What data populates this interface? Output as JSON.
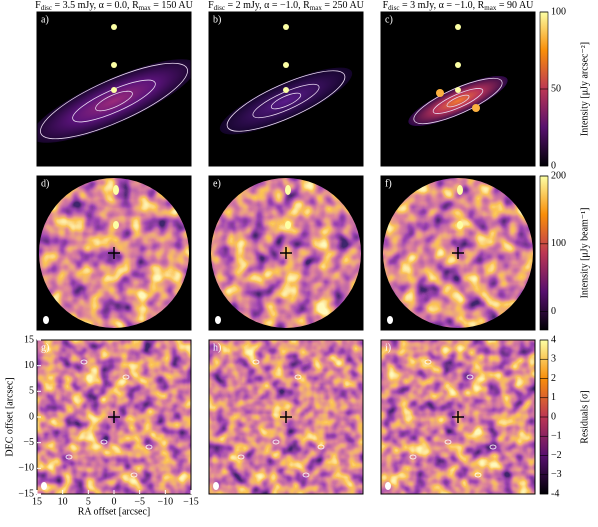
{
  "columns": [
    {
      "title": [
        "F",
        "disc",
        " = 3.5 mJy, α = 0.0, ",
        "R",
        "max",
        " = 150 AU"
      ]
    },
    {
      "title": [
        "F",
        "disc",
        " = 2 mJy, α = −1.0, ",
        "R",
        "max",
        " = 250 AU"
      ]
    },
    {
      "title": [
        "F",
        "disc",
        " = 3 mJy, α = −1.0, ",
        "R",
        "max",
        " = 90 AU"
      ]
    }
  ],
  "panels": [
    [
      "a)",
      "b)",
      "c)"
    ],
    [
      "d)",
      "e)",
      "f)"
    ],
    [
      "g)",
      "h)",
      "i)"
    ]
  ],
  "colorbars": [
    {
      "label": "Intensity [μJy arcsec⁻²]",
      "lim": [
        0,
        100
      ],
      "ticks": [
        0,
        50,
        100
      ]
    },
    {
      "label": "Intensity [μJy beam⁻¹]",
      "lim": [
        -27,
        200
      ],
      "ticks": [
        0,
        100,
        200
      ]
    },
    {
      "label": "Residuals [σ]",
      "lim": [
        -4,
        4
      ],
      "ticks": [
        {
          "value": -4,
          "label": "-4"
        },
        {
          "value": -3,
          "label": "−3"
        },
        {
          "value": -2,
          "label": "−2"
        },
        {
          "value": -1,
          "label": "−1"
        },
        0,
        1,
        2,
        3,
        4
      ]
    }
  ],
  "axes": {
    "xlabel": "RA offset [arcsec]",
    "ylabel": "DEC offset [arcsec]",
    "xlim": [
      15,
      -15
    ],
    "ylim": [
      -15,
      15
    ],
    "xticks": [
      15,
      10,
      5,
      0,
      {
        "value": -5,
        "label": "−5"
      },
      {
        "value": -10,
        "label": "−10"
      },
      {
        "value": -15,
        "label": "−15"
      }
    ],
    "yticks": [
      {
        "value": -15,
        "label": "−15"
      },
      {
        "value": -10,
        "label": "−10"
      },
      {
        "value": -5,
        "label": "−5"
      },
      0,
      5,
      10,
      15
    ]
  }
}
